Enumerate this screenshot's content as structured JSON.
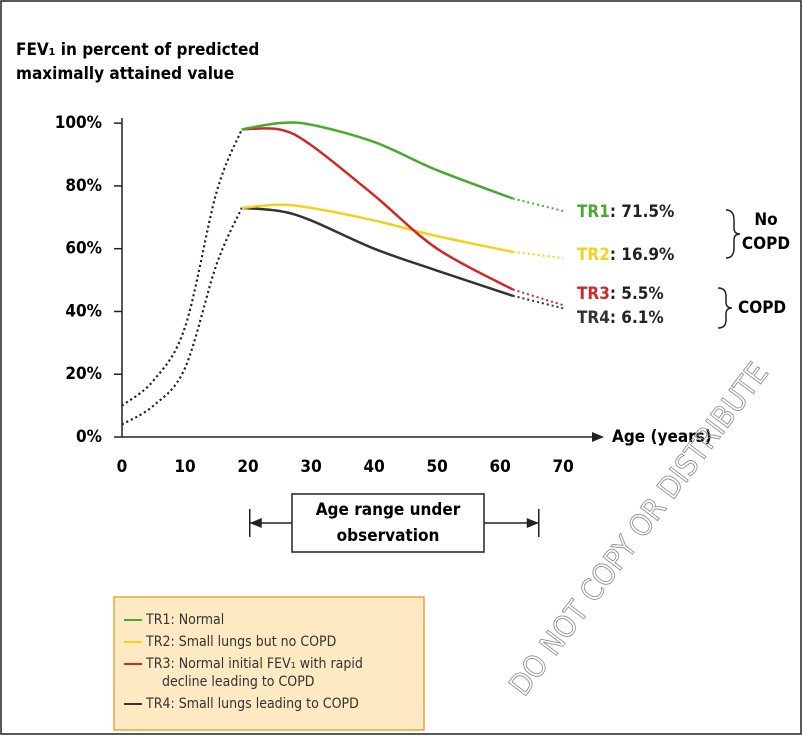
{
  "chart_data": {
    "type": "line",
    "title": [
      "FEV₁ in percent of predicted",
      "maximally attained value"
    ],
    "x_label": "Age (years)",
    "x": [
      0,
      5,
      10,
      15,
      19,
      25,
      30,
      40,
      50,
      62,
      70
    ],
    "xlim": [
      0,
      76
    ],
    "xticks": [
      0,
      10,
      20,
      30,
      40,
      50,
      60,
      70
    ],
    "ylim": [
      0,
      101
    ],
    "yticks": [
      {
        "value": 0,
        "label": "0%"
      },
      {
        "value": 20,
        "label": "20%"
      },
      {
        "value": 40,
        "label": "40%"
      },
      {
        "value": 60,
        "label": "60%"
      },
      {
        "value": 80,
        "label": "80%"
      },
      {
        "value": 100,
        "label": "100%"
      }
    ],
    "observation_range": [
      19,
      62
    ],
    "observation_label": [
      "Age range under",
      "observation"
    ],
    "series": [
      {
        "name": "TR1",
        "color": "#4aa832",
        "end_label": ": 71.5%",
        "legend_label": [
          "TR1: Normal"
        ],
        "values": [
          10,
          18,
          35,
          78,
          98,
          100,
          99.5,
          94,
          85,
          76,
          72
        ]
      },
      {
        "name": "TR2",
        "color": "#f2d21c",
        "end_label": ": 16.9%",
        "legend_label": [
          "TR2: Small lungs but no COPD"
        ],
        "values": [
          4,
          10,
          22,
          55,
          73,
          74,
          73,
          69,
          64,
          59,
          57
        ]
      },
      {
        "name": "TR3",
        "color": "#cc2a2a",
        "end_label": ":  5.5%",
        "legend_label": [
          "TR3: Normal initial FEV₁ with rapid",
          "decline leading to COPD"
        ],
        "values": [
          10,
          18,
          35,
          78,
          98,
          98,
          93,
          77,
          60,
          47,
          42
        ]
      },
      {
        "name": "TR4",
        "color": "#333333",
        "end_label": ":  6.1%",
        "legend_label": [
          "TR4: Small lungs leading to COPD"
        ],
        "values": [
          4,
          10,
          22,
          55,
          73,
          72,
          69,
          60,
          53,
          45,
          41
        ]
      }
    ],
    "groups": [
      {
        "label": [
          "No",
          "COPD"
        ]
      },
      {
        "label": [
          "COPD"
        ]
      }
    ],
    "watermark": "DO NOT COPY OR DISTRIBUTE"
  }
}
